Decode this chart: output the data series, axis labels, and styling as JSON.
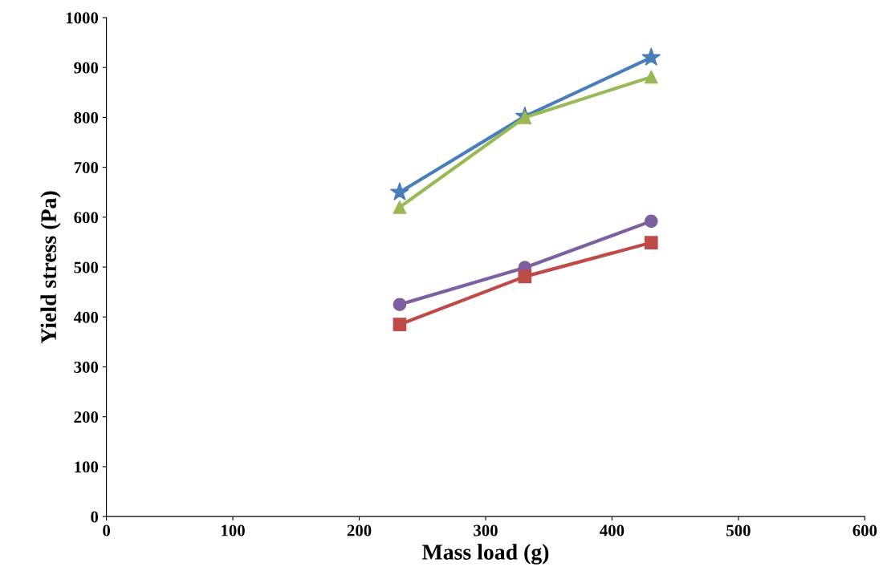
{
  "chart_data": {
    "type": "line",
    "xlabel": "Mass load (g)",
    "ylabel": "Yield stress (Pa)",
    "xlim": [
      0,
      600
    ],
    "xticks": [
      0,
      100,
      200,
      300,
      400,
      500,
      600
    ],
    "ylim": [
      0,
      1000
    ],
    "yticks": [
      0,
      100,
      200,
      300,
      400,
      500,
      600,
      700,
      800,
      900,
      1000
    ],
    "grid": false,
    "legend": false,
    "line_style": "solid",
    "series": [
      {
        "color": "#4a7ebb",
        "marker": "star",
        "x": [
          232,
          331,
          431
        ],
        "values": [
          650,
          802,
          920
        ]
      },
      {
        "color": "#98b954",
        "marker": "triangle",
        "x": [
          232,
          331,
          431
        ],
        "values": [
          620,
          800,
          881
        ]
      },
      {
        "color": "#7d60a0",
        "marker": "circle",
        "x": [
          232,
          331,
          431
        ],
        "values": [
          425,
          499,
          592
        ]
      },
      {
        "color": "#be4b48",
        "marker": "square",
        "x": [
          232,
          331,
          431
        ],
        "values": [
          385,
          481,
          549
        ]
      }
    ]
  }
}
